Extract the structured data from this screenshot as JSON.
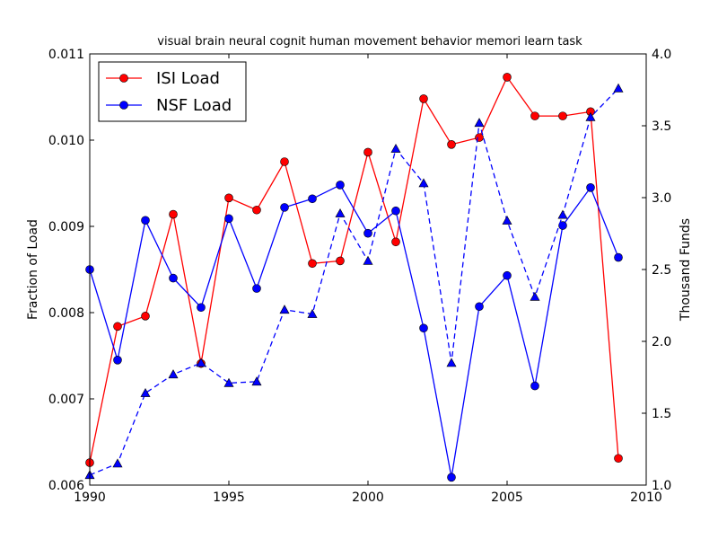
{
  "chart_data": {
    "type": "line",
    "title": "visual brain neural cognit human movement behavior memori learn task",
    "xlabel": "",
    "ylabel": "Fraction of Load",
    "y2label": "Thousand Funds",
    "xlim": [
      1990,
      2010
    ],
    "ylim": [
      0.006,
      0.011
    ],
    "y2lim": [
      1.0,
      4.0
    ],
    "x_ticks": [
      "1990",
      "1995",
      "2000",
      "2005",
      "2010"
    ],
    "y_ticks": [
      "0.006",
      "0.007",
      "0.008",
      "0.009",
      "0.010",
      "0.011"
    ],
    "y2_ticks": [
      "1.0",
      "1.5",
      "2.0",
      "2.5",
      "3.0",
      "3.5",
      "4.0"
    ],
    "grid": false,
    "legend_position": "top-left",
    "x": [
      1990,
      1991,
      1992,
      1993,
      1994,
      1995,
      1996,
      1997,
      1998,
      1999,
      2000,
      2001,
      2002,
      2003,
      2004,
      2005,
      2006,
      2007,
      2008,
      2009
    ],
    "series": [
      {
        "name": "ISI Load",
        "axis": "left",
        "color": "#ff0000",
        "marker": "circle",
        "values": [
          0.00626,
          0.00784,
          0.00796,
          0.00914,
          0.00741,
          0.00933,
          0.00919,
          0.00975,
          0.00857,
          0.0086,
          0.00986,
          0.00882,
          0.01048,
          0.00995,
          0.01003,
          0.01073,
          0.01028,
          0.01028,
          0.01033,
          0.00631
        ]
      },
      {
        "name": "NSF Load",
        "axis": "left",
        "color": "#0000ff",
        "marker": "circle",
        "values": [
          0.0085,
          0.00745,
          0.00907,
          0.0084,
          0.00806,
          0.00909,
          0.00828,
          0.00922,
          0.00932,
          0.00948,
          0.00892,
          0.00918,
          0.00782,
          0.00609,
          0.00807,
          0.00843,
          0.00715,
          0.00901,
          0.00945,
          0.00864
        ]
      },
      {
        "name": "",
        "axis": "right",
        "color": "#0000ff",
        "marker": "triangle",
        "linestyle": "dashed",
        "values": [
          1.07,
          1.15,
          1.64,
          1.77,
          1.85,
          1.71,
          1.72,
          2.22,
          2.19,
          2.89,
          2.56,
          3.34,
          3.1,
          1.85,
          3.52,
          2.84,
          2.31,
          2.88,
          3.56,
          3.76
        ]
      }
    ]
  }
}
